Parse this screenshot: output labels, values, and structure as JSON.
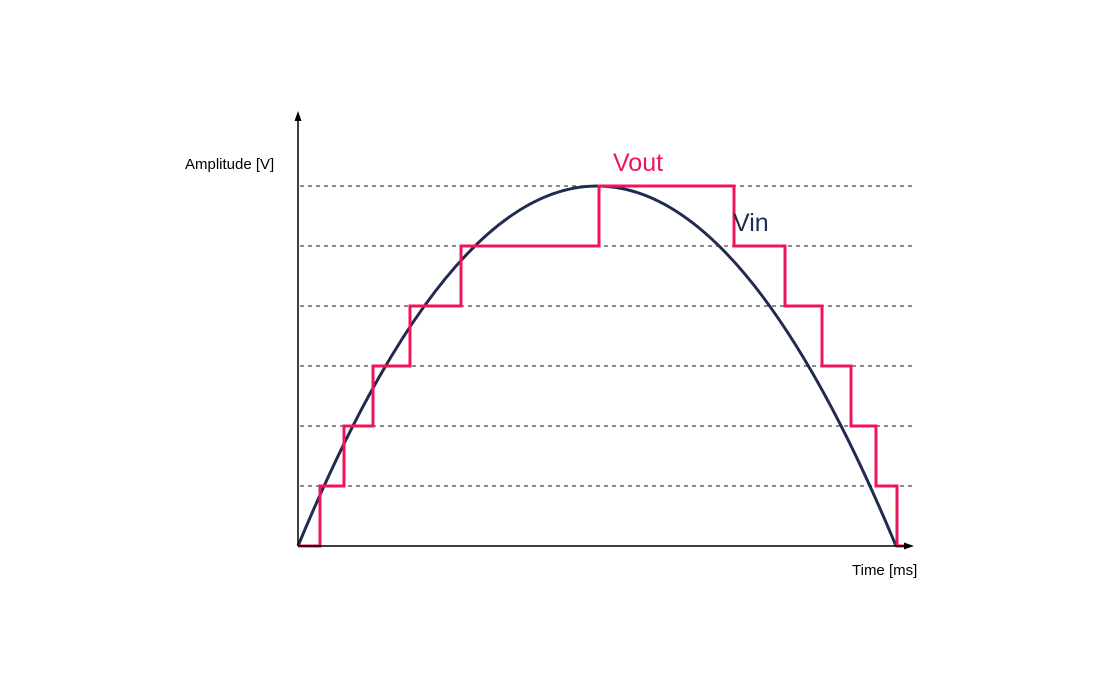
{
  "diagram": {
    "y_axis_label": "Amplitude [V]",
    "x_axis_label": "Time [ms]",
    "vout_label": "Vout",
    "vin_label": "Vin",
    "levels": 6,
    "colors": {
      "vin": "#1f2b4f",
      "vout": "#f0145a",
      "axis": "#000000",
      "grid": "#666666"
    }
  }
}
